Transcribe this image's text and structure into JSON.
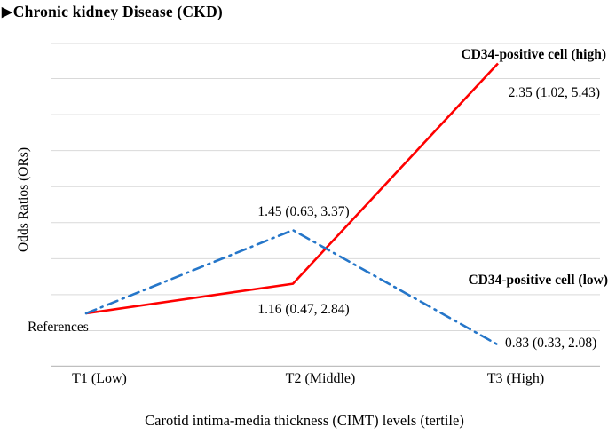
{
  "header": {
    "marker": "▶",
    "title": "Chronic kidney Disease (CKD)"
  },
  "chart_data": {
    "type": "line",
    "title": "Chronic kidney Disease (CKD)",
    "xlabel": "Carotid intima-media thickness (CIMT) levels (tertile)",
    "ylabel": "Odds Ratios (ORs)",
    "categories": [
      "T1 (Low)",
      "T2 (Middle)",
      "T3 (High)"
    ],
    "reference_point_label": "References",
    "grid": true,
    "gridline_count": 10,
    "ylim_approx": [
      0.65,
      2.45
    ],
    "legend_position": "inline-annotations",
    "colors": {
      "series_high": "#fe0000",
      "series_low": "#2576c9",
      "gridline": "#d9d9d9",
      "axis_line": "#bfbfbf"
    },
    "series": [
      {
        "name": "CD34-positive cell (high)",
        "color": "#fe0000",
        "line_style": "solid",
        "values": [
          1.0,
          1.16,
          2.35
        ],
        "value_labels": [
          "References",
          "1.16 (0.47, 2.84)",
          "2.35 (1.02, 5.43)"
        ],
        "ci_95": [
          null,
          [
            0.47,
            2.84
          ],
          [
            1.02,
            5.43
          ]
        ]
      },
      {
        "name": "CD34-positive cell (low)",
        "color": "#2576c9",
        "line_style": "dash-dot",
        "values": [
          1.0,
          1.45,
          0.83
        ],
        "value_labels": [
          "References",
          "1.45 (0.63, 3.37)",
          "0.83 (0.33, 2.08)"
        ],
        "ci_95": [
          null,
          [
            0.63,
            3.37
          ],
          [
            0.33,
            2.08
          ]
        ]
      }
    ]
  }
}
